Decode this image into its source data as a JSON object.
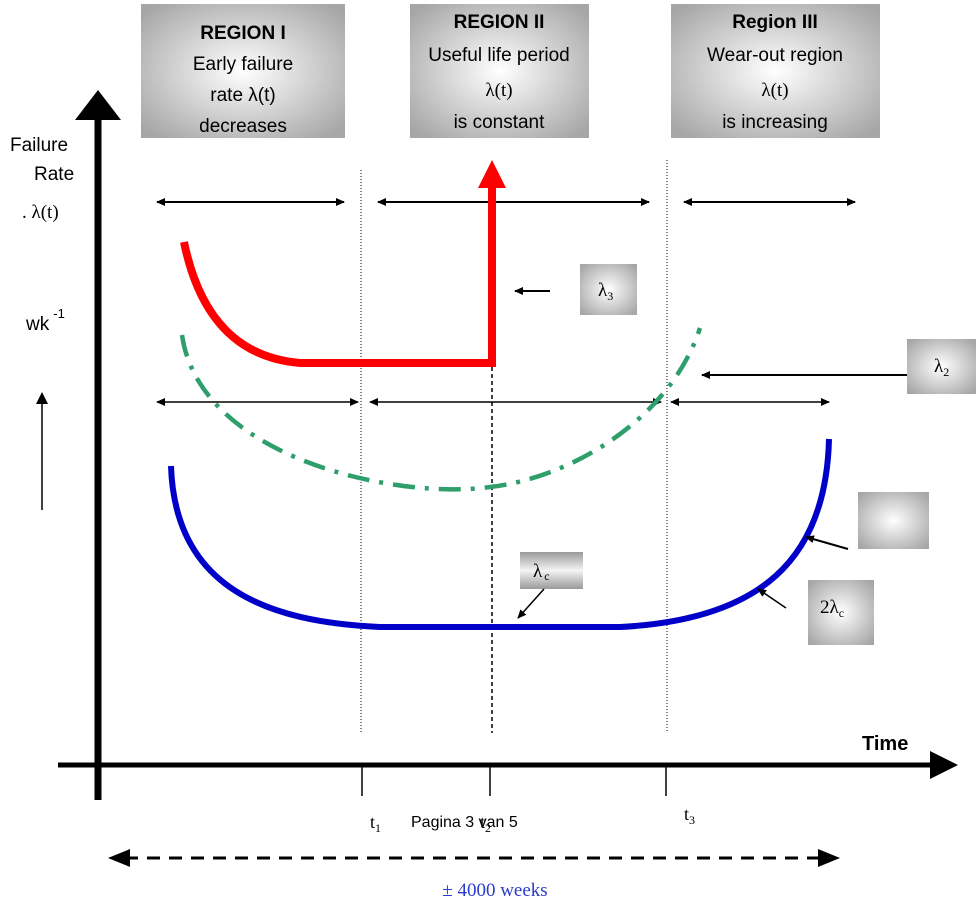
{
  "regions": [
    {
      "title": "REGION I",
      "lines": [
        "Early failure",
        "rate λ(t)",
        "decreases"
      ]
    },
    {
      "title": "REGION II",
      "lines": [
        "Useful life period",
        "λ(t)",
        "is constant"
      ]
    },
    {
      "title": "Region III",
      "lines": [
        "Wear-out region",
        "λ(t)",
        "is increasing"
      ]
    }
  ],
  "y_axis": {
    "line1": "Failure",
    "line2": "Rate",
    "line3": ". λ(t)",
    "unit": "wk",
    "unit_exp": "-1"
  },
  "x_axis": {
    "label": "Time"
  },
  "ticks": [
    {
      "main": "t",
      "sub": "1"
    },
    {
      "main": "t",
      "sub": "2"
    },
    {
      "main": "t",
      "sub": "3"
    }
  ],
  "footer": {
    "page": "Pagina 3 van 5",
    "duration": "± 4000 weeks"
  },
  "callouts": {
    "lambda3": {
      "main": "λ",
      "sub": "3"
    },
    "lambda2": {
      "main": "λ",
      "sub": "2"
    },
    "lambda_c": {
      "main": "λ",
      "sub": "c"
    },
    "two_lambda_c": {
      "main": "2λ",
      "sub": "c"
    }
  },
  "colors": {
    "red_curve": "#ff0000",
    "green_curve": "#2e9e6a",
    "blue_curve": "#0000c8"
  }
}
